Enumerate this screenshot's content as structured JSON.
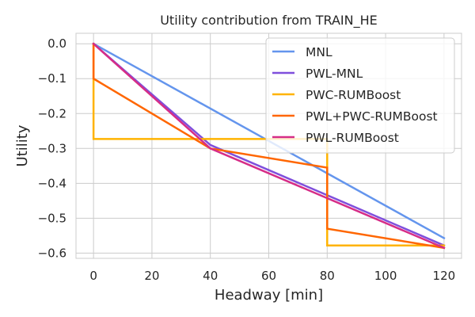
{
  "chart_data": {
    "type": "line",
    "title": "Utility contribution from TRAIN_HE",
    "xlabel": "Headway [min]",
    "ylabel": "Utility",
    "xlim": [
      -6,
      126
    ],
    "ylim": [
      -0.615,
      0.03
    ],
    "xticks": [
      0,
      20,
      40,
      60,
      80,
      100,
      120
    ],
    "yticks": [
      0.0,
      -0.1,
      -0.2,
      -0.3,
      -0.4,
      -0.5,
      -0.6
    ],
    "ytick_labels": [
      "0.0",
      "−0.1",
      "−0.2",
      "−0.3",
      "−0.4",
      "−0.5",
      "−0.6"
    ],
    "grid": true,
    "legend_position": "top-right",
    "series": [
      {
        "name": "MNL",
        "color": "#6495ed",
        "x": [
          0,
          120
        ],
        "y": [
          0.0,
          -0.557
        ]
      },
      {
        "name": "PWL-MNL",
        "color": "#7f4fdc",
        "x": [
          0,
          40,
          120
        ],
        "y": [
          0.0,
          -0.29,
          -0.578
        ]
      },
      {
        "name": "PWC-RUMBoost",
        "color": "#ffb300",
        "x": [
          0,
          0,
          80,
          80,
          120
        ],
        "y": [
          0.0,
          -0.273,
          -0.273,
          -0.578,
          -0.578
        ]
      },
      {
        "name": "PWL+PWC-RUMBoost",
        "color": "#ff6600",
        "x": [
          0,
          0,
          40,
          80,
          80,
          120
        ],
        "y": [
          0.0,
          -0.1,
          -0.3,
          -0.355,
          -0.53,
          -0.585
        ]
      },
      {
        "name": "PWL-RUMBoost",
        "color": "#d62d87",
        "x": [
          0,
          40,
          120
        ],
        "y": [
          0.0,
          -0.3,
          -0.585
        ]
      }
    ]
  }
}
